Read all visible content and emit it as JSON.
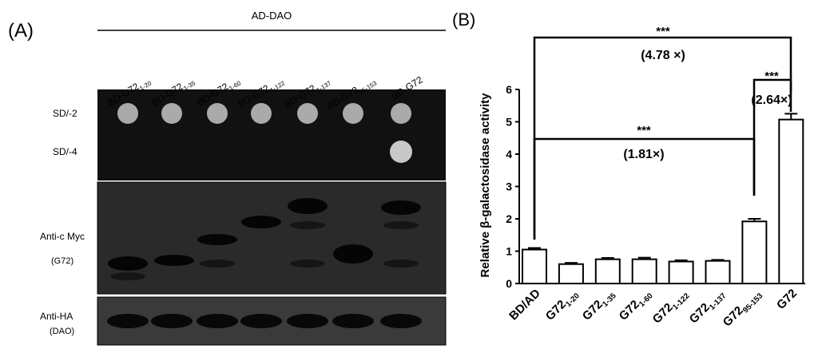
{
  "panel_a": {
    "label": "(A)",
    "group_label": "AD-DAO",
    "lanes": [
      {
        "base": "BD-G72",
        "sub": "1-20"
      },
      {
        "base": "BD-G72",
        "sub": "1-35"
      },
      {
        "base": "BD-G72",
        "sub": "1-60"
      },
      {
        "base": "BD-G72",
        "sub": "1-122"
      },
      {
        "base": "BD-G72",
        "sub": "1-137"
      },
      {
        "base": "BD-G72",
        "sub": "95-153"
      },
      {
        "base": "BD-G72",
        "sub": null
      }
    ],
    "rows": {
      "sd2": "SD/-2",
      "sd4": "SD/-4",
      "myc": "Anti-c Myc",
      "myc_sub": "(G72)",
      "ha": "Anti-HA",
      "ha_sub": "(DAO)"
    }
  },
  "chart_data": {
    "type": "bar",
    "panel_label": "(B)",
    "ylabel": "Relative β-galactosidase activity",
    "categories": [
      "BD/AD",
      "G72",
      "G72",
      "G72",
      "G72",
      "G72",
      "G72",
      "G72"
    ],
    "category_subscripts": [
      null,
      "1-20",
      "1-35",
      "1-60",
      "1-122",
      "1-137",
      "95-153",
      null
    ],
    "values": [
      1.05,
      0.6,
      0.75,
      0.75,
      0.68,
      0.7,
      1.92,
      5.07
    ],
    "errors": [
      0.05,
      0.04,
      0.04,
      0.05,
      0.04,
      0.03,
      0.08,
      0.18
    ],
    "color": "#ffffff",
    "ylim": [
      0,
      6
    ],
    "yticks": [
      0,
      1,
      2,
      3,
      4,
      5,
      6
    ],
    "annotations": [
      {
        "stars": "***",
        "fold": "(4.78 ×)"
      },
      {
        "stars": "***",
        "fold": "(2.64×)"
      },
      {
        "stars": "***",
        "fold": "(1.81×)"
      }
    ]
  }
}
